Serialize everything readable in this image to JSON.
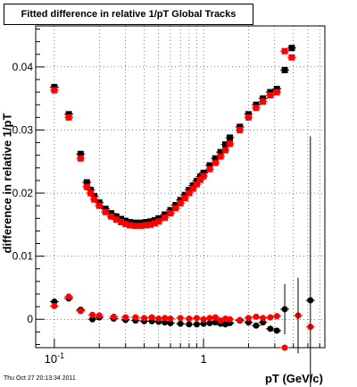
{
  "chart_data": {
    "type": "scatter",
    "title": "Fitted difference in relative 1/pT  Global Tracks",
    "xlabel": "pT (GeV/c)",
    "ylabel": "difference in relative 1/pT",
    "x_scale": "log",
    "xlim": [
      0.075,
      6.5
    ],
    "ylim": [
      -0.0045,
      0.0465
    ],
    "grid": true,
    "x_tick_labels": [
      {
        "value": 0.1,
        "base": "10",
        "exp": "-1"
      },
      {
        "value": 1,
        "base": "1",
        "exp": ""
      }
    ],
    "y_ticks": [
      {
        "value": 0,
        "label": "0"
      },
      {
        "value": 0.01,
        "label": "0.01"
      },
      {
        "value": 0.02,
        "label": "0.02"
      },
      {
        "value": 0.03,
        "label": "0.03"
      },
      {
        "value": 0.04,
        "label": "0.04"
      }
    ],
    "series": [
      {
        "marker": "square",
        "color": "#000000",
        "points": [
          [
            0.1,
            0.0368
          ],
          [
            0.125,
            0.0325
          ],
          [
            0.15,
            0.0262
          ],
          [
            0.165,
            0.0217
          ],
          [
            0.175,
            0.0205
          ],
          [
            0.185,
            0.0195
          ],
          [
            0.2,
            0.0185
          ],
          [
            0.22,
            0.0175
          ],
          [
            0.24,
            0.0168
          ],
          [
            0.26,
            0.0163
          ],
          [
            0.28,
            0.0159
          ],
          [
            0.3,
            0.0156
          ],
          [
            0.32,
            0.0154
          ],
          [
            0.35,
            0.0153
          ],
          [
            0.38,
            0.0153
          ],
          [
            0.41,
            0.0154
          ],
          [
            0.44,
            0.0155
          ],
          [
            0.47,
            0.0157
          ],
          [
            0.5,
            0.016
          ],
          [
            0.55,
            0.0166
          ],
          [
            0.6,
            0.0173
          ],
          [
            0.65,
            0.0181
          ],
          [
            0.7,
            0.0189
          ],
          [
            0.75,
            0.0197
          ],
          [
            0.8,
            0.0205
          ],
          [
            0.85,
            0.0212
          ],
          [
            0.9,
            0.0219
          ],
          [
            0.95,
            0.0226
          ],
          [
            1.0,
            0.0232
          ],
          [
            1.1,
            0.0244
          ],
          [
            1.2,
            0.0255
          ],
          [
            1.3,
            0.0265
          ],
          [
            1.4,
            0.0277
          ],
          [
            1.5,
            0.0288
          ],
          [
            1.75,
            0.0305
          ],
          [
            2.0,
            0.0325
          ],
          [
            2.25,
            0.034
          ],
          [
            2.5,
            0.035
          ],
          [
            2.8,
            0.036
          ],
          [
            3.1,
            0.0365
          ],
          [
            3.5,
            0.0395
          ],
          [
            3.9,
            0.043
          ]
        ]
      },
      {
        "marker": "square",
        "color": "#ff0000",
        "points": [
          [
            0.1,
            0.0363
          ],
          [
            0.125,
            0.032
          ],
          [
            0.15,
            0.0255
          ],
          [
            0.165,
            0.021
          ],
          [
            0.175,
            0.02
          ],
          [
            0.185,
            0.019
          ],
          [
            0.2,
            0.018
          ],
          [
            0.22,
            0.017
          ],
          [
            0.24,
            0.0163
          ],
          [
            0.26,
            0.0158
          ],
          [
            0.28,
            0.0154
          ],
          [
            0.3,
            0.0151
          ],
          [
            0.32,
            0.0149
          ],
          [
            0.35,
            0.0148
          ],
          [
            0.38,
            0.0148
          ],
          [
            0.41,
            0.0149
          ],
          [
            0.44,
            0.015
          ],
          [
            0.47,
            0.0152
          ],
          [
            0.5,
            0.0155
          ],
          [
            0.55,
            0.0161
          ],
          [
            0.6,
            0.0168
          ],
          [
            0.65,
            0.0176
          ],
          [
            0.7,
            0.0184
          ],
          [
            0.75,
            0.0192
          ],
          [
            0.8,
            0.02
          ],
          [
            0.85,
            0.0207
          ],
          [
            0.9,
            0.0214
          ],
          [
            0.95,
            0.0221
          ],
          [
            1.0,
            0.0227
          ],
          [
            1.1,
            0.0238
          ],
          [
            1.2,
            0.0248
          ],
          [
            1.3,
            0.0258
          ],
          [
            1.4,
            0.0268
          ],
          [
            1.5,
            0.0278
          ],
          [
            1.75,
            0.03
          ],
          [
            2.0,
            0.032
          ],
          [
            2.25,
            0.0335
          ],
          [
            2.5,
            0.0345
          ],
          [
            2.8,
            0.0355
          ],
          [
            3.1,
            0.036
          ],
          [
            3.5,
            0.0425
          ],
          [
            3.9,
            0.0415
          ]
        ]
      },
      {
        "marker": "circle",
        "color": "#000000",
        "points": [
          [
            0.1,
            0.0028
          ],
          [
            0.125,
            0.0033
          ],
          [
            0.15,
            0.0015
          ],
          [
            0.18,
            0.0
          ],
          [
            0.2,
            0.0003
          ],
          [
            0.25,
            0.0001
          ],
          [
            0.3,
            -0.0001
          ],
          [
            0.35,
            -0.0002
          ],
          [
            0.4,
            -0.0003
          ],
          [
            0.45,
            -0.0003
          ],
          [
            0.5,
            -0.0004
          ],
          [
            0.55,
            -0.0005
          ],
          [
            0.6,
            -0.0006
          ],
          [
            0.7,
            -0.0007
          ],
          [
            0.8,
            -0.0008
          ],
          [
            0.9,
            -0.0008
          ],
          [
            1.0,
            -0.0007
          ],
          [
            1.1,
            -0.0006
          ],
          [
            1.2,
            -0.0005
          ],
          [
            1.3,
            -0.0007
          ],
          [
            1.4,
            -0.0008
          ],
          [
            1.5,
            -0.0006
          ],
          [
            1.75,
            -0.0002
          ],
          [
            2.0,
            -0.0005
          ],
          [
            2.25,
            -0.001
          ],
          [
            2.5,
            -0.0005
          ],
          [
            2.8,
            -0.0015
          ],
          [
            3.1,
            -0.0018
          ],
          [
            3.5,
            0.0016
          ],
          [
            5.2,
            0.003
          ]
        ]
      },
      {
        "marker": "circle",
        "color": "#ff0000",
        "points": [
          [
            0.1,
            0.0021
          ],
          [
            0.125,
            0.0036
          ],
          [
            0.15,
            0.0013
          ],
          [
            0.18,
            0.0007
          ],
          [
            0.2,
            0.0006
          ],
          [
            0.25,
            0.0004
          ],
          [
            0.3,
            0.0003
          ],
          [
            0.35,
            0.0003
          ],
          [
            0.4,
            0.0002
          ],
          [
            0.45,
            0.0003
          ],
          [
            0.5,
            0.0001
          ],
          [
            0.55,
            0.0002
          ],
          [
            0.6,
            0.0001
          ],
          [
            0.7,
            0.0002
          ],
          [
            0.8,
            0.0001
          ],
          [
            0.9,
            0.0002
          ],
          [
            1.0,
            0.0
          ],
          [
            1.1,
            0.0002
          ],
          [
            1.2,
            0.0003
          ],
          [
            1.3,
            -0.0002
          ],
          [
            1.4,
            0.0001
          ],
          [
            1.5,
            0.0
          ],
          [
            1.75,
            -0.0001
          ],
          [
            2.0,
            0.0002
          ],
          [
            2.25,
            0.0004
          ],
          [
            2.5,
            0.0002
          ],
          [
            2.8,
            0.0003
          ],
          [
            3.1,
            0.0005
          ],
          [
            3.5,
            -0.0045
          ],
          [
            4.3,
            0.0006
          ],
          [
            5.2,
            -0.0012
          ]
        ]
      }
    ]
  },
  "title_box_text": "Fitted difference in relative 1/pT  Global Tracks",
  "timestamp": "Thu Oct 27 20:13:34 2011"
}
